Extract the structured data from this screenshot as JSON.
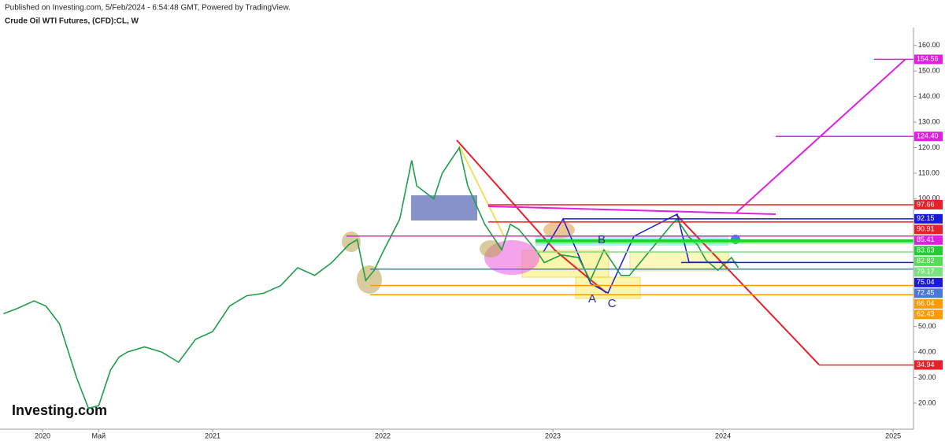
{
  "chart_data": {
    "type": "line",
    "subtitle": "Published on Investing.com, 5/Feb/2024 - 6:54:48 GMT, Powered by TradingView.",
    "title": "Crude Oil WTI Futures, (CFD):CL, W",
    "logo": "Investing.com",
    "annotations": [
      "A",
      "B",
      "C"
    ],
    "xlim": [
      2019.75,
      2025.12
    ],
    "xticks": [
      2020,
      {
        "value": 2020.33,
        "label": "Май"
      },
      2021,
      2022,
      2023,
      2024,
      2025
    ],
    "ylim": [
      9.8,
      167
    ],
    "yticks": [
      {
        "value": 20,
        "label": "20.00"
      },
      {
        "value": 30,
        "label": "30.00"
      },
      {
        "value": 40,
        "label": "40.00"
      },
      {
        "value": 50,
        "label": "50.00"
      },
      {
        "value": 100,
        "label": "100.00"
      },
      {
        "value": 110,
        "label": "110.00"
      },
      {
        "value": 120,
        "label": "120.00"
      },
      {
        "value": 130,
        "label": "130.00"
      },
      {
        "value": 140,
        "label": "140.00"
      },
      {
        "value": 150,
        "label": "150.00"
      },
      {
        "value": 160,
        "label": "160.00"
      }
    ],
    "grid": false,
    "series": [
      {
        "name": "CL",
        "color": "#1e9e4a",
        "x": [
          2019.77,
          2019.85,
          2019.95,
          2020.02,
          2020.1,
          2020.2,
          2020.27,
          2020.33,
          2020.4,
          2020.45,
          2020.5,
          2020.6,
          2020.7,
          2020.8,
          2020.9,
          2021.0,
          2021.1,
          2021.2,
          2021.3,
          2021.4,
          2021.5,
          2021.6,
          2021.7,
          2021.8,
          2021.85,
          2021.9,
          2021.95,
          2022.0,
          2022.1,
          2022.17,
          2022.2,
          2022.3,
          2022.35,
          2022.45,
          2022.5,
          2022.6,
          2022.7,
          2022.75,
          2022.8,
          2022.9,
          2022.95,
          2023.05,
          2023.15,
          2023.22,
          2023.3,
          2023.4,
          2023.45,
          2023.5,
          2023.6,
          2023.7,
          2023.73,
          2023.8,
          2023.85,
          2023.9,
          2023.97,
          2024.05,
          2024.09
        ],
        "values": [
          55,
          57,
          60,
          58,
          51,
          30,
          18,
          19,
          33,
          38,
          40,
          42,
          40,
          36,
          45,
          48,
          58,
          62,
          63,
          66,
          73,
          70,
          75,
          82,
          84,
          68,
          72,
          79,
          92,
          115,
          105,
          100,
          110,
          120,
          105,
          90,
          80,
          90,
          88,
          80,
          75,
          78,
          77,
          68,
          80,
          70,
          70,
          74,
          82,
          90,
          92,
          85,
          82,
          76,
          72,
          77,
          73
        ]
      }
    ],
    "levels": [
      {
        "value": 154.56,
        "label": "154.56",
        "color": "#e020e0"
      },
      {
        "value": 124.4,
        "label": "124.40",
        "color": "#e020e0"
      },
      {
        "value": 97.66,
        "label": "97.66",
        "color": "#e8202a"
      },
      {
        "value": 92.15,
        "label": "92.15",
        "color": "#1a1ad6"
      },
      {
        "value": 90.91,
        "label": "90.91",
        "color": "#e8202a"
      },
      {
        "value": 85.41,
        "label": "85.41",
        "color": "#e020e0"
      },
      {
        "value": 83.63,
        "label": "83.63",
        "color": "#22cc33"
      },
      {
        "value": 82.82,
        "label": "82.82",
        "color": "#55dd55"
      },
      {
        "value": 79.17,
        "label": "79.17",
        "color": "#7ee07e"
      },
      {
        "value": 75.04,
        "label": "75.04",
        "color": "#1a1ad6"
      },
      {
        "value": 72.45,
        "label": "72.45",
        "color": "#4a78d8"
      },
      {
        "value": 66.04,
        "label": "66.04",
        "color": "#ff9900"
      },
      {
        "value": 62.43,
        "label": "62.43",
        "color": "#ff9900"
      },
      {
        "value": 34.94,
        "label": "34.94",
        "color": "#e8202a"
      }
    ]
  }
}
